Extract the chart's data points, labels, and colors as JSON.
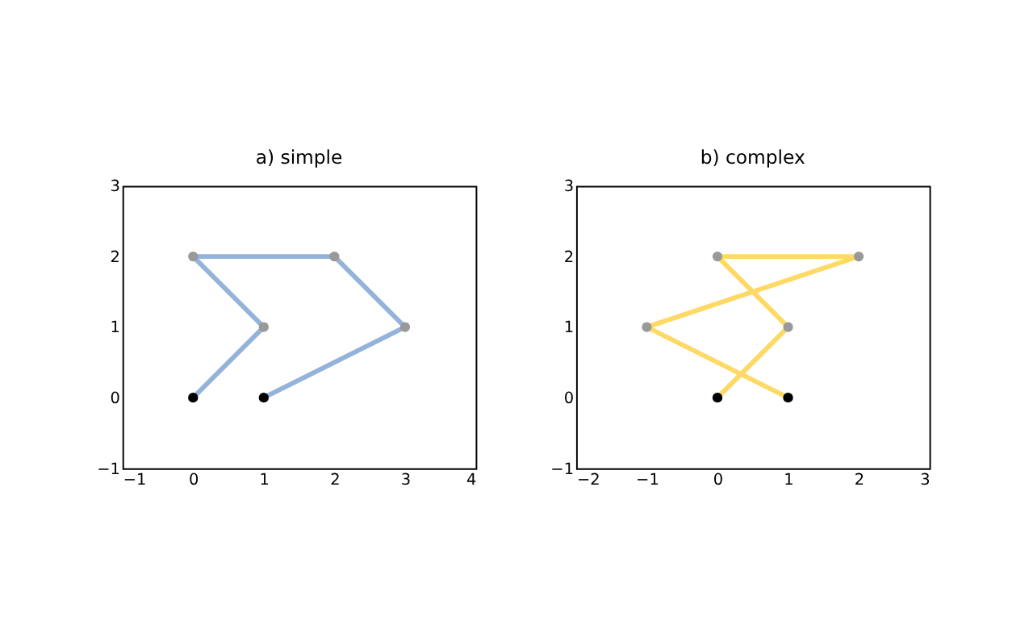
{
  "chart_data": [
    {
      "type": "line",
      "title": "a) simple",
      "xlim": [
        -1,
        4
      ],
      "ylim": [
        -1,
        3
      ],
      "xticks": [
        -1,
        0,
        1,
        2,
        3,
        4
      ],
      "yticks": [
        -1,
        0,
        1,
        2,
        3
      ],
      "grid": false,
      "series": [
        {
          "color": "#94b3d9",
          "x": [
            0,
            1,
            0,
            2,
            3,
            1
          ],
          "values": [
            0,
            1,
            2,
            2,
            1,
            0
          ],
          "marker": "none"
        },
        {
          "type": "scatter",
          "x": [
            0,
            1,
            0,
            2,
            3,
            1
          ],
          "values": [
            0,
            1,
            2,
            2,
            1,
            0
          ],
          "colors": [
            "#000000",
            "#999999",
            "#999999",
            "#999999",
            "#999999",
            "#000000"
          ],
          "marker": "circle"
        }
      ]
    },
    {
      "type": "line",
      "title": "b) complex",
      "xlim": [
        -2,
        3
      ],
      "ylim": [
        -1,
        3
      ],
      "xticks": [
        -2,
        -1,
        0,
        1,
        2,
        3
      ],
      "yticks": [
        -1,
        0,
        1,
        2,
        3
      ],
      "grid": false,
      "series": [
        {
          "color": "#ffd966",
          "x": [
            0,
            1,
            0,
            2,
            -1,
            1
          ],
          "values": [
            0,
            1,
            2,
            2,
            1,
            0
          ],
          "marker": "none"
        },
        {
          "type": "scatter",
          "x": [
            0,
            1,
            0,
            2,
            -1,
            1
          ],
          "values": [
            0,
            1,
            2,
            2,
            1,
            0
          ],
          "colors": [
            "#000000",
            "#999999",
            "#999999",
            "#999999",
            "#999999",
            "#000000"
          ],
          "marker": "circle"
        }
      ]
    }
  ]
}
